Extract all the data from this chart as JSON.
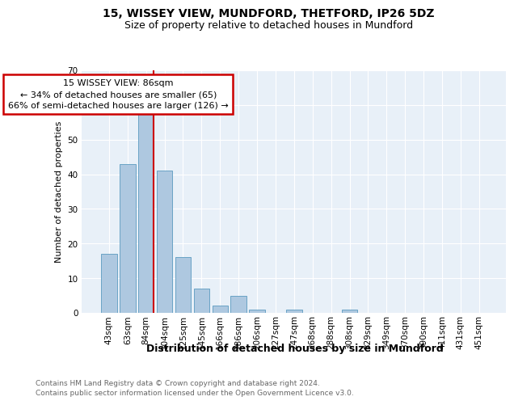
{
  "title1": "15, WISSEY VIEW, MUNDFORD, THETFORD, IP26 5DZ",
  "title2": "Size of property relative to detached houses in Mundford",
  "xlabel": "Distribution of detached houses by size in Mundford",
  "ylabel": "Number of detached properties",
  "footnote1": "Contains HM Land Registry data © Crown copyright and database right 2024.",
  "footnote2": "Contains public sector information licensed under the Open Government Licence v3.0.",
  "annotation_line1": "15 WISSEY VIEW: 86sqm",
  "annotation_line2": "← 34% of detached houses are smaller (65)",
  "annotation_line3": "66% of semi-detached houses are larger (126) →",
  "bar_labels": [
    "43sqm",
    "63sqm",
    "84sqm",
    "104sqm",
    "125sqm",
    "145sqm",
    "166sqm",
    "186sqm",
    "206sqm",
    "227sqm",
    "247sqm",
    "268sqm",
    "288sqm",
    "308sqm",
    "329sqm",
    "349sqm",
    "370sqm",
    "390sqm",
    "411sqm",
    "431sqm",
    "451sqm"
  ],
  "bar_values": [
    17,
    43,
    58,
    41,
    16,
    7,
    2,
    5,
    1,
    0,
    1,
    0,
    0,
    1,
    0,
    0,
    0,
    0,
    0,
    0,
    0
  ],
  "bar_color": "#aec8e0",
  "bar_edge_color": "#5a9abf",
  "property_line_color": "#cc0000",
  "ylim": [
    0,
    70
  ],
  "yticks": [
    0,
    10,
    20,
    30,
    40,
    50,
    60,
    70
  ],
  "axes_bg_color": "#e8f0f8",
  "annotation_box_color": "#ffffff",
  "annotation_box_edge": "#cc0000",
  "title1_fontsize": 10,
  "title2_fontsize": 9,
  "ylabel_fontsize": 8,
  "xlabel_fontsize": 9,
  "footnote_fontsize": 6.5,
  "tick_fontsize": 7.5,
  "annotation_fontsize": 8
}
